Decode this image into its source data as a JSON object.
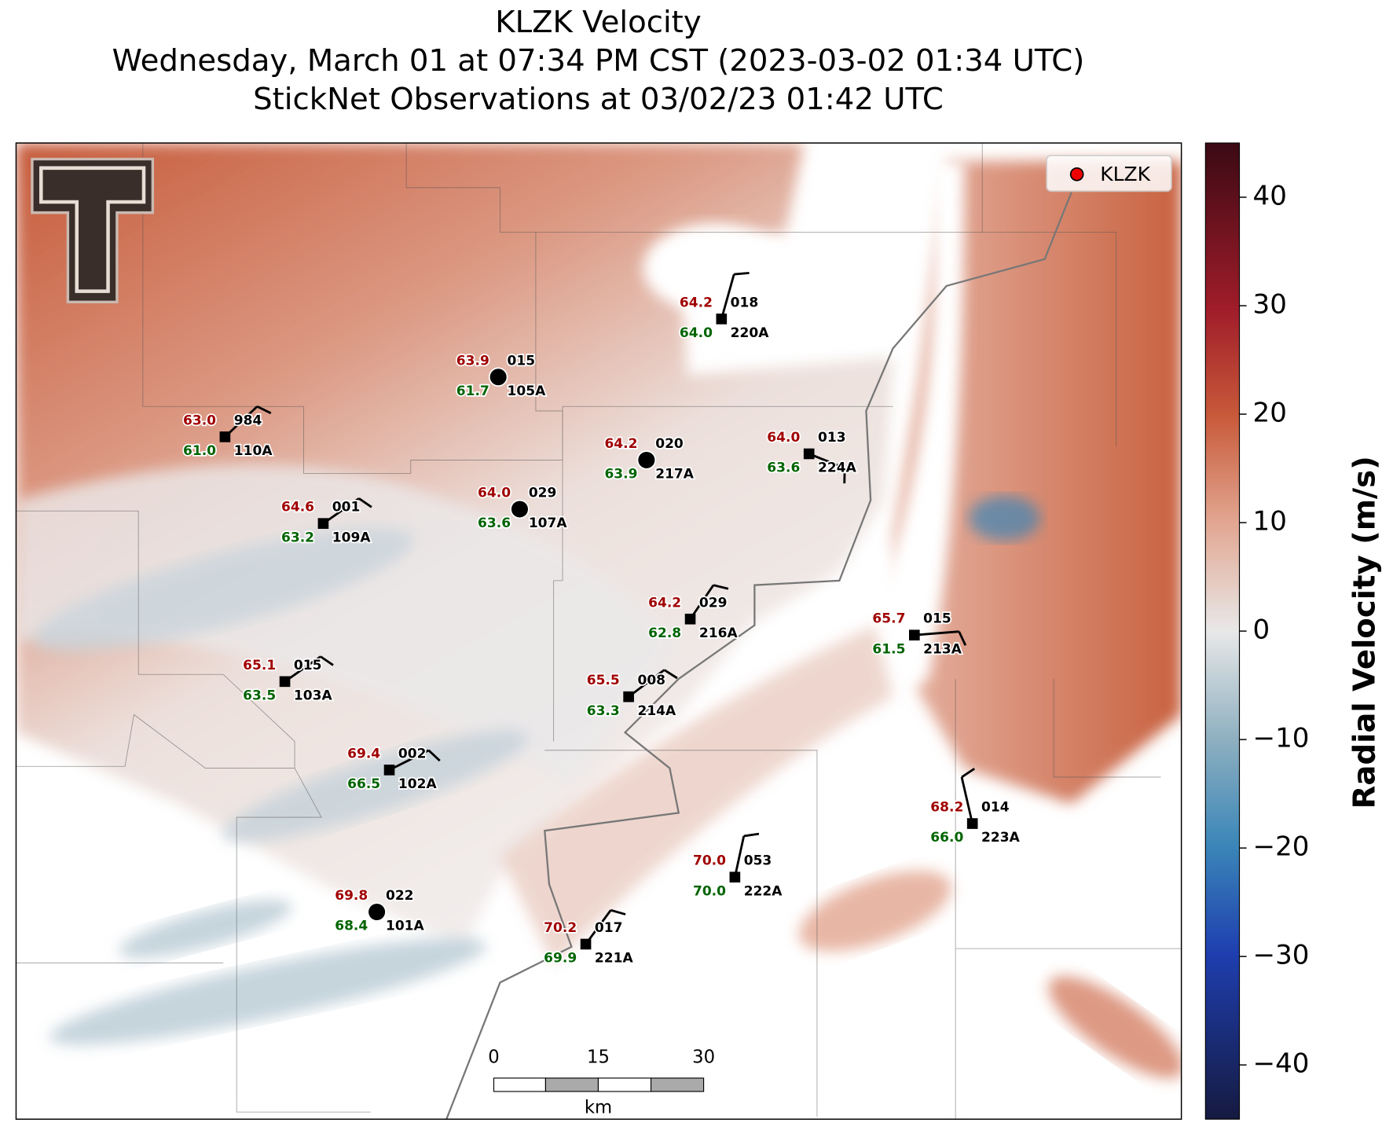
{
  "header": {
    "title": [
      "KLZK Velocity",
      "Wednesday, March 01 at 07:34 PM CST (2023-03-02 01:34 UTC)",
      "StickNet Observations at 03/02/23 01:42 UTC"
    ]
  },
  "legend": {
    "label": "KLZK"
  },
  "colorbar": {
    "label": "Radial Velocity (m/s)",
    "lim": [
      -45,
      45
    ],
    "ticks": [
      {
        "value": -40,
        "label": "−40"
      },
      {
        "value": -30,
        "label": "−30"
      },
      {
        "value": -20,
        "label": "−20"
      },
      {
        "value": -10,
        "label": "−10"
      },
      0,
      10,
      20,
      30,
      40
    ]
  },
  "scale_bar": {
    "labels": [
      "0",
      "15",
      "30"
    ],
    "unit": "km"
  },
  "stations": [
    {
      "id": "220A",
      "temp": "64.2",
      "dew": "64.0",
      "pres": "018"
    },
    {
      "id": "105A",
      "temp": "63.9",
      "dew": "61.7",
      "pres": "015"
    },
    {
      "id": "110A",
      "temp": "63.0",
      "dew": "61.0",
      "pres": "984"
    },
    {
      "id": "217A",
      "temp": "64.2",
      "dew": "63.9",
      "pres": "020"
    },
    {
      "id": "224A",
      "temp": "64.0",
      "dew": "63.6",
      "pres": "013"
    },
    {
      "id": "107A",
      "temp": "64.0",
      "dew": "63.6",
      "pres": "029"
    },
    {
      "id": "109A",
      "temp": "64.6",
      "dew": "63.2",
      "pres": "001"
    },
    {
      "id": "216A",
      "temp": "64.2",
      "dew": "62.8",
      "pres": "029"
    },
    {
      "id": "213A",
      "temp": "65.7",
      "dew": "61.5",
      "pres": "015"
    },
    {
      "id": "103A",
      "temp": "65.1",
      "dew": "63.5",
      "pres": "015"
    },
    {
      "id": "214A",
      "temp": "65.5",
      "dew": "63.3",
      "pres": "008"
    },
    {
      "id": "102A",
      "temp": "69.4",
      "dew": "66.5",
      "pres": "002"
    },
    {
      "id": "223A",
      "temp": "68.2",
      "dew": "66.0",
      "pres": "014"
    },
    {
      "id": "222A",
      "temp": "70.0",
      "dew": "70.0",
      "pres": "053"
    },
    {
      "id": "101A",
      "temp": "69.8",
      "dew": "68.4",
      "pres": "022"
    },
    {
      "id": "221A",
      "temp": "70.2",
      "dew": "69.9",
      "pres": "017"
    }
  ]
}
